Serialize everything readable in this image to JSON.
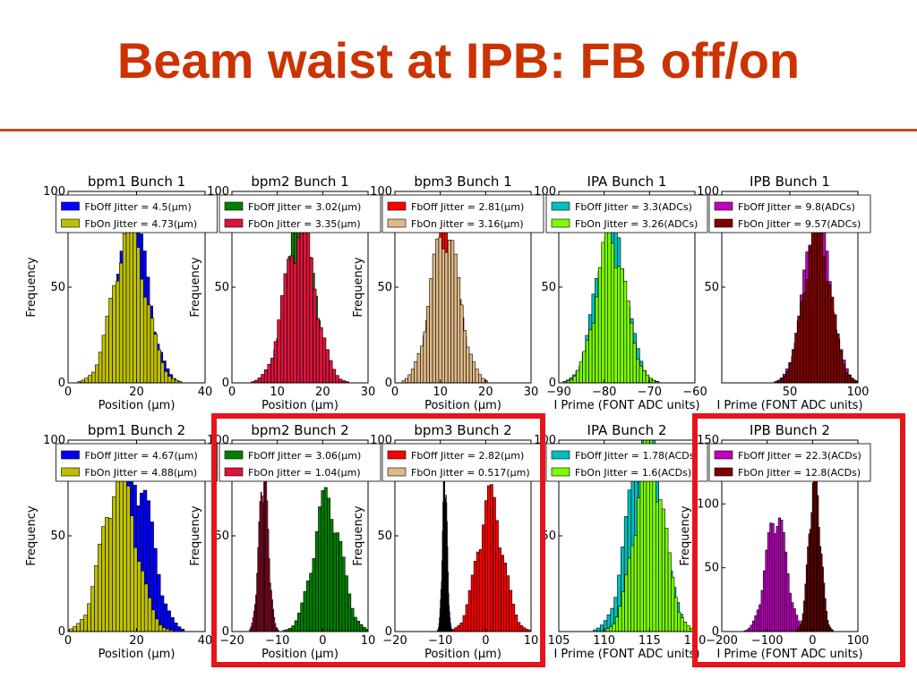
{
  "slide": {
    "title": "Beam waist at IPB: FB off/on"
  },
  "chart_data": [
    {
      "type": "histogram",
      "title": "bpm1 Bunch 1",
      "xlabel": "Position (μm)",
      "ylabel": "Frequency",
      "xlim": [
        0,
        40
      ],
      "ylim": [
        0,
        100
      ],
      "xticks": [
        "0",
        "20",
        "40"
      ],
      "yticks": [
        "0",
        "50",
        "100"
      ],
      "legend_loc": "top",
      "series": [
        {
          "label": "FbOff Jitter = 4.5(μm)",
          "color": "#0000ff",
          "mean": 19,
          "sigma": 4.5,
          "peak": 80,
          "lo": 0,
          "hi": 40
        },
        {
          "label": "FbOn Jitter = 4.73(μm)",
          "color": "#bfbf00",
          "mean": 18,
          "sigma": 4.73,
          "peak": 80,
          "lo": 0,
          "hi": 40
        }
      ]
    },
    {
      "type": "histogram",
      "title": "bpm2 Bunch 1",
      "xlabel": "Position (μm)",
      "ylabel": "Frequency",
      "xlim": [
        0,
        30
      ],
      "ylim": [
        0,
        100
      ],
      "xticks": [
        "0",
        "10",
        "20",
        "30"
      ],
      "yticks": [
        "0",
        "50",
        "100"
      ],
      "legend_loc": "top",
      "series": [
        {
          "label": "FbOff Jitter = 3.02(μm)",
          "color": "#008000",
          "mean": 15,
          "sigma": 3.02,
          "peak": 80,
          "lo": 0,
          "hi": 30
        },
        {
          "label": "FbOn Jitter = 3.35(μm)",
          "color": "#dc143c",
          "mean": 15,
          "sigma": 3.35,
          "peak": 80,
          "lo": 0,
          "hi": 30
        }
      ]
    },
    {
      "type": "histogram",
      "title": "bpm3 Bunch 1",
      "xlabel": "Position (μm)",
      "ylabel": "Frequency",
      "xlim": [
        0,
        30
      ],
      "ylim": [
        0,
        100
      ],
      "xticks": [
        "0",
        "10",
        "20",
        "30"
      ],
      "yticks": [
        "0",
        "50",
        "100"
      ],
      "legend_loc": "top",
      "series": [
        {
          "label": "FbOff Jitter = 2.81(μm)",
          "color": "#ff0000",
          "mean": 11,
          "sigma": 2.81,
          "peak": 78,
          "lo": 0,
          "hi": 30
        },
        {
          "label": "FbOn Jitter = 3.16(μm)",
          "color": "#deb887",
          "mean": 11,
          "sigma": 3.16,
          "peak": 78,
          "lo": 0,
          "hi": 30
        }
      ]
    },
    {
      "type": "histogram",
      "title": "IPA Bunch 1",
      "xlabel": "I Prime (FONT ADC units)",
      "ylabel": "",
      "xlim": [
        -90,
        -60
      ],
      "ylim": [
        0,
        100
      ],
      "xticks": [
        "−90",
        "−80",
        "−70",
        "−60"
      ],
      "yticks": [
        "0",
        "50",
        "100"
      ],
      "legend_loc": "top",
      "series": [
        {
          "label": "FbOff Jitter = 3.3(ADCs)",
          "color": "#00bfbf",
          "mean": -78.5,
          "sigma": 3.3,
          "peak": 82,
          "lo": -90,
          "hi": -60
        },
        {
          "label": "FbOn Jitter = 3.26(ADCs)",
          "color": "#7cfc00",
          "mean": -78.5,
          "sigma": 3.26,
          "peak": 75,
          "lo": -90,
          "hi": -60
        }
      ]
    },
    {
      "type": "histogram",
      "title": "IPB Bunch 1",
      "xlabel": "I Prime (FONT ADC units)",
      "ylabel": "",
      "xlim": [
        0,
        100
      ],
      "ylim": [
        0,
        100
      ],
      "xticks": [
        "50",
        "100"
      ],
      "yticks": [
        "50",
        "100"
      ],
      "legend_loc": "top",
      "series": [
        {
          "label": "FbOff Jitter = 9.8(ADCs)",
          "color": "#bf00bf",
          "mean": 70,
          "sigma": 9.8,
          "peak": 82,
          "lo": 0,
          "hi": 100
        },
        {
          "label": "FbOn Jitter = 9.57(ADCs)",
          "color": "#800000",
          "mean": 70,
          "sigma": 9.57,
          "peak": 82,
          "lo": 0,
          "hi": 100
        }
      ]
    },
    {
      "type": "histogram",
      "title": "bpm1 Bunch 2",
      "xlabel": "Position (μm)",
      "ylabel": "Frequency",
      "xlim": [
        0,
        40
      ],
      "ylim": [
        0,
        100
      ],
      "xticks": [
        "0",
        "20",
        "40"
      ],
      "yticks": [
        "0",
        "50",
        "100"
      ],
      "legend_loc": "top",
      "series": [
        {
          "label": "FbOff Jitter = 4.67(μm)",
          "color": "#0000ff",
          "mean": 20,
          "sigma": 4.67,
          "peak": 80,
          "lo": 0,
          "hi": 40
        },
        {
          "label": "FbOn Jitter = 4.88(μm)",
          "color": "#bfbf00",
          "mean": 15,
          "sigma": 4.88,
          "peak": 80,
          "lo": 0,
          "hi": 40
        }
      ]
    },
    {
      "type": "histogram",
      "title": "bpm2 Bunch 2",
      "xlabel": "Position (μm)",
      "ylabel": "Frequency",
      "xlim": [
        -20,
        10
      ],
      "ylim": [
        0,
        100
      ],
      "xticks": [
        "−20",
        "−10",
        "0",
        "10"
      ],
      "yticks": [
        "0",
        "50",
        "100"
      ],
      "legend_loc": "top",
      "series": [
        {
          "label": "FbOff Jitter = 3.06(μm)",
          "color": "#008000",
          "mean": 1,
          "sigma": 3.06,
          "peak": 68,
          "lo": -20,
          "hi": 10
        },
        {
          "label": "FbOn Jitter = 1.04(μm)",
          "color": "#dc143c",
          "mean": -13,
          "sigma": 1.04,
          "peak": 80,
          "lo": -20,
          "hi": 10
        }
      ]
    },
    {
      "type": "histogram",
      "title": "bpm3 Bunch 2",
      "xlabel": "Position (μm)",
      "ylabel": "Frequency",
      "xlim": [
        -20,
        10
      ],
      "ylim": [
        0,
        100
      ],
      "xticks": [
        "−20",
        "−10",
        "0",
        "10"
      ],
      "yticks": [
        "0",
        "50",
        "100"
      ],
      "legend_loc": "top",
      "series": [
        {
          "label": "FbOff Jitter = 2.82(μm)",
          "color": "#ff0000",
          "mean": 1,
          "sigma": 2.82,
          "peak": 68,
          "lo": -20,
          "hi": 10
        },
        {
          "label": "FbOn Jitter = 0.517(μm)",
          "color": "#deb887",
          "mean": -9,
          "sigma": 0.517,
          "peak": 80,
          "lo": -20,
          "hi": 10
        }
      ]
    },
    {
      "type": "histogram",
      "title": "IPA Bunch 2",
      "xlabel": "I Prime (FONT ADC units)",
      "ylabel": "",
      "xlim": [
        105,
        120
      ],
      "ylim": [
        0,
        100
      ],
      "xticks": [
        "105",
        "110",
        "115",
        "120"
      ],
      "yticks": [
        "50",
        "100"
      ],
      "legend_loc": "top",
      "series": [
        {
          "label": "FbOff Jitter = 1.78(ACDs)",
          "color": "#00bfbf",
          "mean": 114.5,
          "sigma": 1.78,
          "peak": 105,
          "lo": 105,
          "hi": 120
        },
        {
          "label": "FbOn Jitter = 1.6(ACDs)",
          "color": "#7cfc00",
          "mean": 115,
          "sigma": 1.6,
          "peak": 95,
          "lo": 105,
          "hi": 120
        }
      ]
    },
    {
      "type": "histogram",
      "title": "IPB Bunch 2",
      "xlabel": "I Prime (FONT ADC units)",
      "ylabel": "Frequency",
      "xlim": [
        -200,
        100
      ],
      "ylim": [
        0,
        150
      ],
      "xticks": [
        "−200",
        "−100",
        "0",
        "100"
      ],
      "yticks": [
        "0",
        "50",
        "100",
        "150"
      ],
      "legend_loc": "top",
      "series": [
        {
          "label": "FbOff Jitter = 22.3(ACDs)",
          "color": "#bf00bf",
          "mean": -80,
          "sigma": 22.3,
          "peak": 90,
          "lo": -200,
          "hi": 100
        },
        {
          "label": "FbOn Jitter = 12.8(ACDs)",
          "color": "#800000",
          "mean": 5,
          "sigma": 12.8,
          "peak": 120,
          "lo": -200,
          "hi": 100
        }
      ]
    }
  ]
}
